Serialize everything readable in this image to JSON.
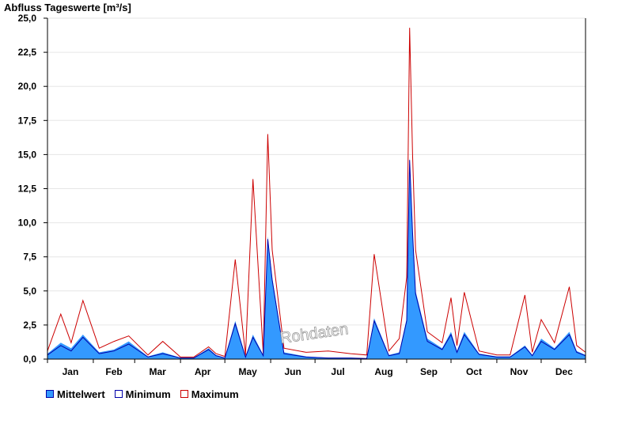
{
  "chart_data": {
    "type": "area",
    "title": "Abfluss Tageswerte [m³/s]",
    "ylabel": "",
    "xlabel": "",
    "ylim": [
      0,
      25
    ],
    "y_ticks": [
      "25,0",
      "22,5",
      "20,0",
      "17,5",
      "15,0",
      "12,5",
      "10,0",
      "7,5",
      "5,0",
      "2,5",
      "0,0"
    ],
    "x_ticks": [
      "Jan",
      "Feb",
      "Mar",
      "Apr",
      "May",
      "Jun",
      "Jul",
      "Aug",
      "Sep",
      "Oct",
      "Nov",
      "Dec"
    ],
    "grid": true,
    "watermark": "Rohdaten",
    "colors": {
      "mittelwert_fill": "#3399ff",
      "minimum_line": "#0000aa",
      "maximum_line": "#cc0000",
      "grid": "#e6e6e6"
    },
    "series": [
      {
        "name": "Mittelwert",
        "x": [
          "01-01",
          "01-10",
          "01-17",
          "01-25",
          "02-05",
          "02-15",
          "02-25",
          "03-10",
          "03-20",
          "04-01",
          "04-10",
          "04-20",
          "04-25",
          "05-01",
          "05-08",
          "05-15",
          "05-20",
          "05-27",
          "05-30",
          "06-02",
          "06-10",
          "06-25",
          "07-10",
          "07-25",
          "08-05",
          "08-10",
          "08-20",
          "08-27",
          "09-01",
          "09-03",
          "09-05",
          "09-07",
          "09-15",
          "09-25",
          "10-01",
          "10-05",
          "10-10",
          "10-20",
          "11-01",
          "11-10",
          "11-20",
          "11-25",
          "12-01",
          "12-10",
          "12-20",
          "12-25",
          "12-31"
        ],
        "y": [
          0.4,
          1.2,
          0.8,
          1.8,
          0.5,
          0.7,
          1.3,
          0.2,
          0.5,
          0.1,
          0.1,
          0.8,
          0.3,
          0.1,
          2.8,
          0.2,
          1.8,
          0.3,
          9.0,
          6.0,
          0.5,
          0.2,
          0.1,
          0.1,
          0.05,
          3.0,
          0.3,
          0.5,
          3.0,
          14.8,
          9.5,
          5.0,
          1.5,
          0.8,
          2.0,
          0.6,
          2.0,
          0.4,
          0.2,
          0.2,
          1.0,
          0.3,
          1.5,
          0.8,
          2.0,
          0.6,
          0.3
        ]
      },
      {
        "name": "Minimum",
        "x": [
          "01-01",
          "01-10",
          "01-17",
          "01-25",
          "02-05",
          "02-15",
          "02-25",
          "03-10",
          "03-20",
          "04-01",
          "04-10",
          "04-20",
          "04-25",
          "05-01",
          "05-08",
          "05-15",
          "05-20",
          "05-27",
          "05-30",
          "06-02",
          "06-10",
          "06-25",
          "07-10",
          "07-25",
          "08-05",
          "08-10",
          "08-20",
          "08-27",
          "09-01",
          "09-03",
          "09-05",
          "09-07",
          "09-15",
          "09-25",
          "10-01",
          "10-05",
          "10-10",
          "10-20",
          "11-01",
          "11-10",
          "11-20",
          "11-25",
          "12-01",
          "12-10",
          "12-20",
          "12-25",
          "12-31"
        ],
        "y": [
          0.3,
          1.0,
          0.6,
          1.6,
          0.4,
          0.6,
          1.1,
          0.15,
          0.4,
          0.08,
          0.08,
          0.7,
          0.25,
          0.08,
          2.6,
          0.15,
          1.6,
          0.25,
          8.8,
          5.8,
          0.4,
          0.15,
          0.08,
          0.08,
          0.04,
          2.8,
          0.25,
          0.4,
          2.8,
          14.6,
          9.3,
          4.8,
          1.3,
          0.7,
          1.8,
          0.5,
          1.8,
          0.35,
          0.15,
          0.15,
          0.9,
          0.25,
          1.3,
          0.7,
          1.8,
          0.5,
          0.25
        ]
      },
      {
        "name": "Maximum",
        "x": [
          "01-01",
          "01-10",
          "01-17",
          "01-25",
          "02-05",
          "02-15",
          "02-25",
          "03-10",
          "03-20",
          "04-01",
          "04-10",
          "04-20",
          "04-25",
          "05-01",
          "05-08",
          "05-15",
          "05-20",
          "05-27",
          "05-30",
          "06-02",
          "06-10",
          "06-25",
          "07-10",
          "07-25",
          "08-05",
          "08-10",
          "08-20",
          "08-27",
          "09-01",
          "09-03",
          "09-05",
          "09-07",
          "09-15",
          "09-25",
          "10-01",
          "10-05",
          "10-10",
          "10-20",
          "11-01",
          "11-10",
          "11-20",
          "11-25",
          "12-01",
          "12-10",
          "12-20",
          "12-25",
          "12-31"
        ],
        "y": [
          0.6,
          3.3,
          1.2,
          4.3,
          0.8,
          1.3,
          1.7,
          0.3,
          1.3,
          0.15,
          0.15,
          0.9,
          0.4,
          0.2,
          7.3,
          0.3,
          13.2,
          0.4,
          16.5,
          8.0,
          0.8,
          0.5,
          0.6,
          0.4,
          0.3,
          7.7,
          0.6,
          1.5,
          6.0,
          24.3,
          15.0,
          8.0,
          2.0,
          1.2,
          4.5,
          1.0,
          4.9,
          0.6,
          0.3,
          0.3,
          4.7,
          0.5,
          2.9,
          1.2,
          5.3,
          1.0,
          0.5
        ]
      }
    ]
  }
}
